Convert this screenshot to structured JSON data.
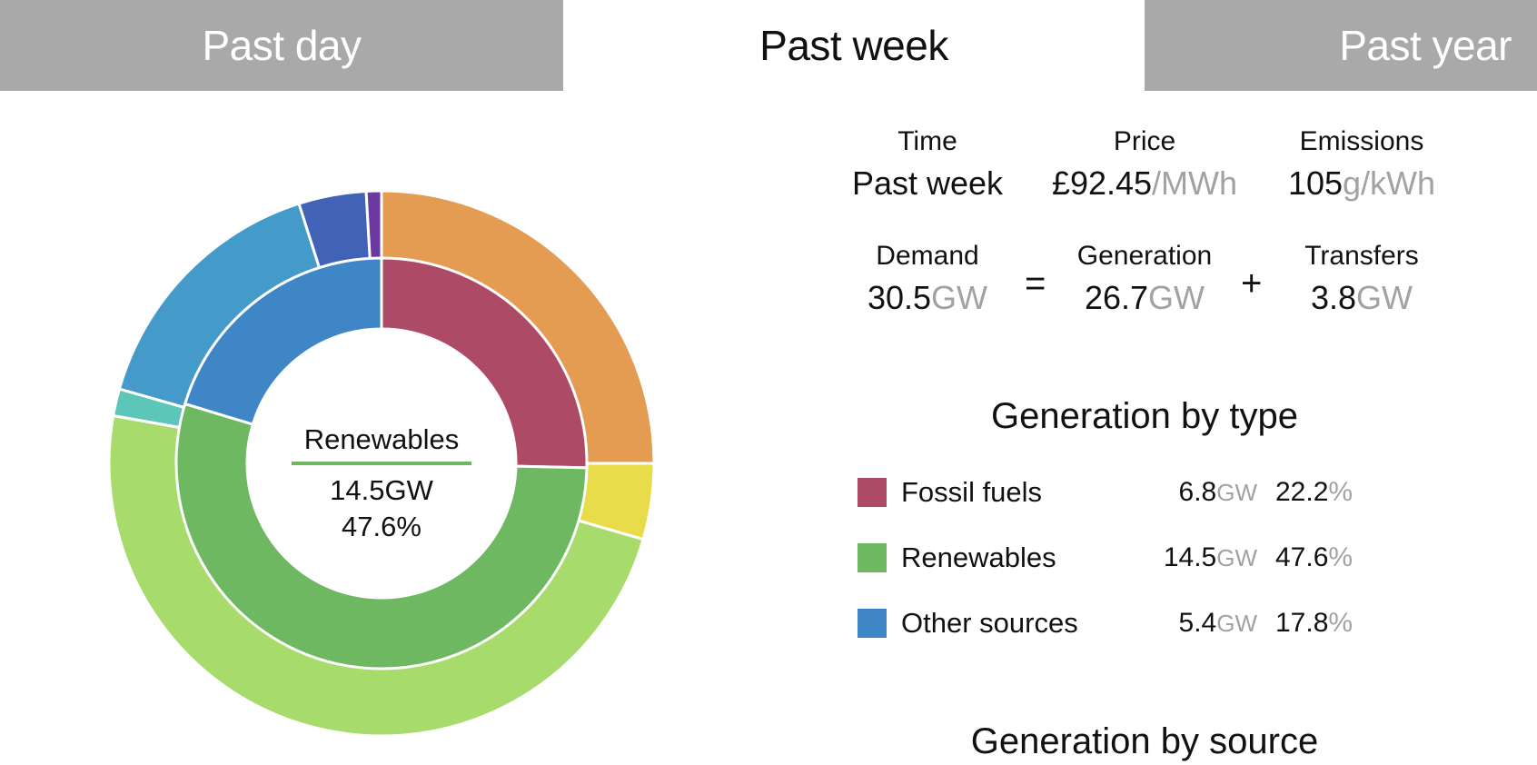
{
  "tabs": [
    {
      "label": "Past day",
      "active": false
    },
    {
      "label": "Past week",
      "active": true
    },
    {
      "label": "Past year",
      "active": false
    }
  ],
  "stats": {
    "time": {
      "label": "Time",
      "value": "Past week"
    },
    "price": {
      "label": "Price",
      "value": "£92.45",
      "unit": "/MWh"
    },
    "emissions": {
      "label": "Emissions",
      "value": "105",
      "unit": "g/kWh"
    },
    "demand": {
      "label": "Demand",
      "value": "30.5",
      "unit": "GW"
    },
    "generation": {
      "label": "Generation",
      "value": "26.7",
      "unit": "GW"
    },
    "transfers": {
      "label": "Transfers",
      "value": "3.8",
      "unit": "GW"
    },
    "equals": "=",
    "plus": "+"
  },
  "generation_by_type": {
    "title": "Generation by type",
    "rows": [
      {
        "name": "Fossil fuels",
        "gw": "6.8",
        "gw_unit": "GW",
        "pct": "22.2",
        "pct_unit": "%",
        "color": "#ad4b66"
      },
      {
        "name": "Renewables",
        "gw": "14.5",
        "gw_unit": "GW",
        "pct": "47.6",
        "pct_unit": "%",
        "color": "#6fb862"
      },
      {
        "name": "Other sources",
        "gw": "5.4",
        "gw_unit": "GW",
        "pct": "17.8",
        "pct_unit": "%",
        "color": "#3e86c6"
      }
    ]
  },
  "generation_by_source": {
    "title": "Generation by source"
  },
  "donut_center": {
    "name": "Renewables",
    "gw": "14.5GW",
    "pct": "47.6%",
    "color": "#6fb862"
  },
  "chart_data": {
    "type": "pie",
    "inner_ring": [
      {
        "name": "Fossil fuels",
        "value": 22.2,
        "color": "#ad4b66"
      },
      {
        "name": "Renewables",
        "value": 47.6,
        "color": "#6fb862"
      },
      {
        "name": "Other sources",
        "value": 17.8,
        "color": "#3e86c6"
      }
    ],
    "outer_ring": [
      {
        "value": 25.0,
        "color": "#e39c52"
      },
      {
        "value": 4.5,
        "color": "#e8dc4a"
      },
      {
        "value": 48.3,
        "color": "#a7db6b"
      },
      {
        "value": 1.6,
        "color": "#5cc7b9"
      },
      {
        "value": 15.7,
        "color": "#449ac9"
      },
      {
        "value": 4.0,
        "color": "#4162b6"
      },
      {
        "value": 0.9,
        "color": "#6a3aa0"
      }
    ]
  }
}
